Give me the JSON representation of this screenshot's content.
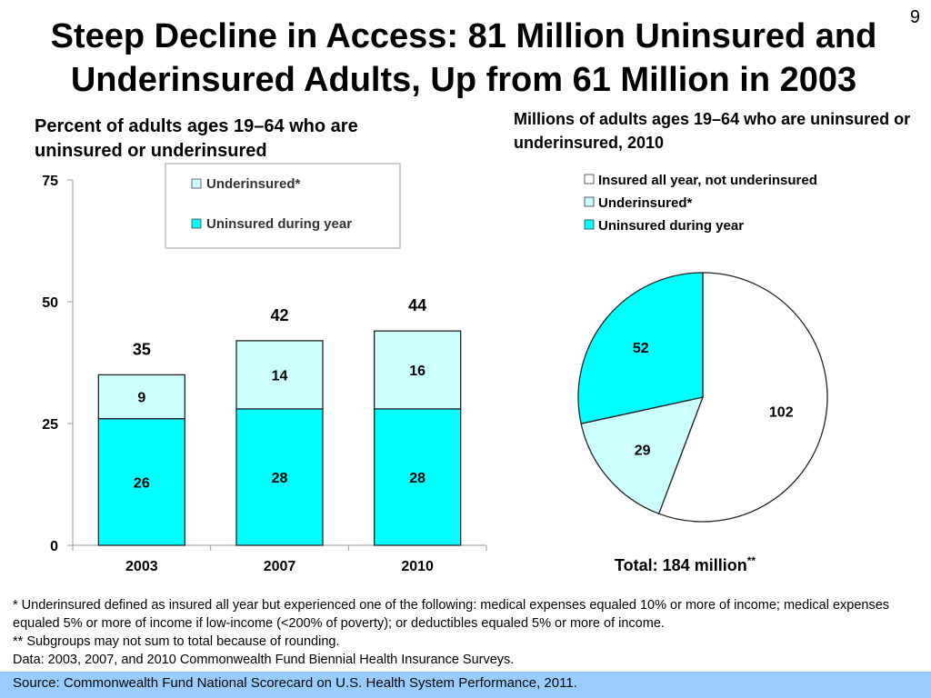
{
  "slide_number": "9",
  "title": "Steep Decline in Access: 81 Million Uninsured and Underinsured Adults, Up from 61 Million in 2003",
  "colors": {
    "uninsured": "#00ffff",
    "underinsured": "#ccffff",
    "insured": "#ffffff"
  },
  "chart_data": [
    {
      "type": "bar",
      "stacked": true,
      "title": "Percent of adults ages 19–64 who are uninsured or underinsured",
      "categories": [
        "2003",
        "2007",
        "2010"
      ],
      "series": [
        {
          "name": "Uninsured during year",
          "values": [
            26,
            28,
            28
          ],
          "labels": [
            "26",
            "28",
            "28"
          ]
        },
        {
          "name": "Underinsured*",
          "values": [
            9,
            14,
            16
          ],
          "labels": [
            "9",
            "14",
            "16"
          ]
        }
      ],
      "totals": [
        35,
        42,
        44
      ],
      "total_labels": [
        "35",
        "42",
        "44"
      ],
      "ylim": [
        0,
        75
      ],
      "yticks": [
        0,
        25,
        50,
        75
      ],
      "ytick_labels": [
        "0",
        "25",
        "50",
        "75"
      ],
      "legend": [
        "Underinsured*",
        "Uninsured during year"
      ],
      "legend_position": "top-center"
    },
    {
      "type": "pie",
      "title": "Millions of adults ages 19–64 who are uninsured or underinsured, 2010",
      "slices": [
        {
          "name": "Insured all year, not underinsured",
          "value": 102,
          "label": "102"
        },
        {
          "name": "Underinsured*",
          "value": 29,
          "label": "29"
        },
        {
          "name": "Uninsured during year",
          "value": 52,
          "label": "52"
        }
      ],
      "legend": [
        "Insured all year, not underinsured",
        "Underinsured*",
        "Uninsured during year"
      ],
      "legend_position": "top",
      "total_label": "Total: 184 million",
      "total_suffix": "**"
    }
  ],
  "footnotes": [
    "* Underinsured defined as insured all year but experienced one of the following: medical expenses equaled 10% or more of income; medical expenses equaled 5% or more of income if low-income (<200% of poverty); or deductibles equaled 5% or more of income.",
    "** Subgroups may not sum to total because of rounding.",
    "Data: 2003, 2007, and 2010 Commonwealth Fund Biennial Health Insurance Surveys."
  ],
  "source": "Source: Commonwealth Fund National Scorecard on U.S. Health System Performance, 2011."
}
